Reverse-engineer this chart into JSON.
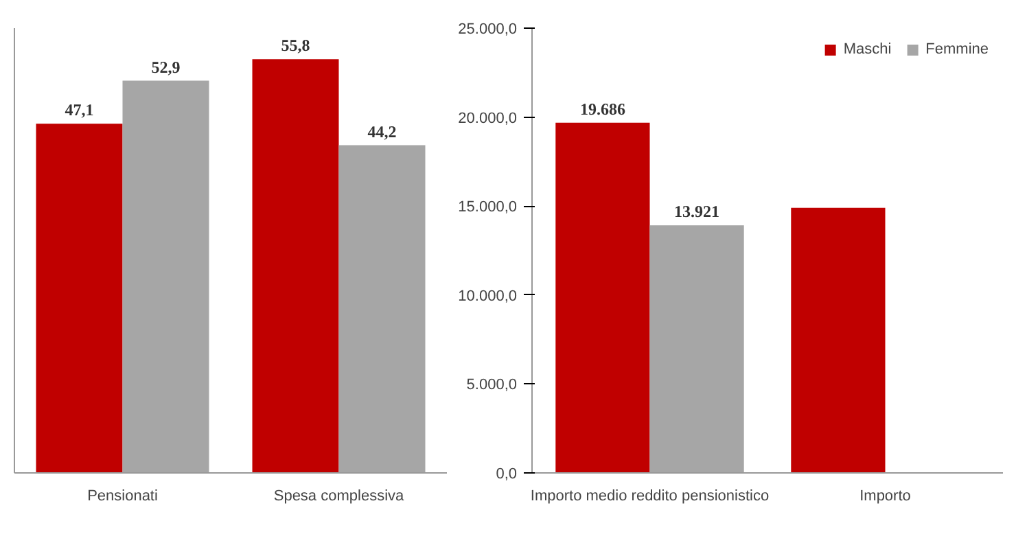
{
  "chart_data": [
    {
      "type": "bar",
      "categories": [
        "Pensionati",
        "Spesa complessiva"
      ],
      "tick_labels": "x",
      "grid": false,
      "legend": false,
      "series": [
        {
          "color": "#c00000",
          "values": [
            47.1,
            55.8
          ],
          "value_labels": [
            "47,1",
            "55,8"
          ]
        },
        {
          "color": "#a6a6a6",
          "values": [
            52.9,
            44.2
          ],
          "value_labels": [
            "52,9",
            "44,2"
          ]
        }
      ]
    },
    {
      "type": "bar",
      "categories": [
        "Importo medio reddito pensionistico",
        "Importo"
      ],
      "grid": false,
      "legend": "top right",
      "ylim": [
        0,
        25000
      ],
      "yticks": [
        {
          "value": 0,
          "label": "0,0"
        },
        {
          "value": 5000,
          "label": "5.000,0"
        },
        {
          "value": 10000,
          "label": "10.000,0"
        },
        {
          "value": 15000,
          "label": "15.000,0"
        },
        {
          "value": 20000,
          "label": "20.000,0"
        },
        {
          "value": 25000,
          "label": "25.000,0"
        }
      ],
      "series": [
        {
          "name": "Maschi",
          "color": "#c00000",
          "values": [
            19686,
            14900
          ],
          "value_labels": [
            "19.686",
            null
          ]
        },
        {
          "name": "Femmine",
          "color": "#a6a6a6",
          "values": [
            13921,
            null
          ],
          "value_labels": [
            "13.921",
            null
          ]
        }
      ]
    }
  ]
}
